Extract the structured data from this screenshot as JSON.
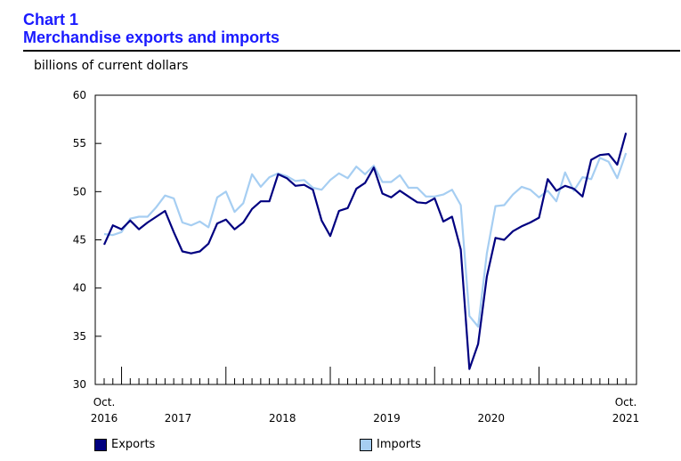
{
  "header": {
    "number": "Chart 1",
    "title": "Merchandise exports and imports"
  },
  "chart_data": {
    "type": "line",
    "title": "Merchandise exports and imports",
    "ylabel": "billions of current dollars",
    "ylim": [
      30,
      60
    ],
    "yticks": [
      30,
      35,
      40,
      45,
      50,
      55,
      60
    ],
    "grid": false,
    "legend_placement": "bottom",
    "x_start": "2016-10",
    "x_end": "2021-10",
    "x_labels": {
      "start_month": "Oct.",
      "start_year": "2016",
      "years": [
        "2017",
        "2018",
        "2019",
        "2020"
      ],
      "end_month": "Oct.",
      "end_year": "2021"
    },
    "x": [
      "2016-10",
      "2016-11",
      "2016-12",
      "2017-01",
      "2017-02",
      "2017-03",
      "2017-04",
      "2017-05",
      "2017-06",
      "2017-07",
      "2017-08",
      "2017-09",
      "2017-10",
      "2017-11",
      "2017-12",
      "2018-01",
      "2018-02",
      "2018-03",
      "2018-04",
      "2018-05",
      "2018-06",
      "2018-07",
      "2018-08",
      "2018-09",
      "2018-10",
      "2018-11",
      "2018-12",
      "2019-01",
      "2019-02",
      "2019-03",
      "2019-04",
      "2019-05",
      "2019-06",
      "2019-07",
      "2019-08",
      "2019-09",
      "2019-10",
      "2019-11",
      "2019-12",
      "2020-01",
      "2020-02",
      "2020-03",
      "2020-04",
      "2020-05",
      "2020-06",
      "2020-07",
      "2020-08",
      "2020-09",
      "2020-10",
      "2020-11",
      "2020-12",
      "2021-01",
      "2021-02",
      "2021-03",
      "2021-04",
      "2021-05",
      "2021-06",
      "2021-07",
      "2021-08",
      "2021-09",
      "2021-10"
    ],
    "series": [
      {
        "name": "Exports",
        "color": "#000080",
        "values": [
          44.5,
          46.5,
          46.1,
          47.0,
          46.1,
          46.8,
          47.4,
          48.0,
          45.8,
          43.8,
          43.6,
          43.8,
          44.6,
          46.7,
          47.1,
          46.1,
          46.8,
          48.2,
          49.0,
          49.0,
          51.8,
          51.4,
          50.6,
          50.7,
          50.2,
          47.0,
          45.4,
          48.0,
          48.3,
          50.3,
          50.9,
          52.5,
          49.8,
          49.4,
          50.1,
          49.5,
          48.9,
          48.8,
          49.3,
          46.9,
          47.4,
          44.0,
          31.6,
          34.2,
          41.2,
          45.2,
          45.0,
          45.9,
          46.4,
          46.8,
          47.3,
          51.3,
          50.1,
          50.6,
          50.3,
          49.5,
          53.3,
          53.8,
          53.9,
          52.8,
          56.1
        ]
      },
      {
        "name": "Imports",
        "color": "#a6cef2",
        "values": [
          45.6,
          45.5,
          45.8,
          47.2,
          47.4,
          47.4,
          48.4,
          49.6,
          49.3,
          46.8,
          46.5,
          46.9,
          46.3,
          49.4,
          50.0,
          47.9,
          48.8,
          51.8,
          50.5,
          51.5,
          51.9,
          51.6,
          51.1,
          51.2,
          50.4,
          50.2,
          51.2,
          51.9,
          51.4,
          52.6,
          51.8,
          52.7,
          51.0,
          51.0,
          51.7,
          50.4,
          50.4,
          49.5,
          49.5,
          49.7,
          50.2,
          48.6,
          37.1,
          36.0,
          43.6,
          48.5,
          48.6,
          49.7,
          50.5,
          50.2,
          49.4,
          50.1,
          49.0,
          52.0,
          50.1,
          51.5,
          51.3,
          53.5,
          53.1,
          51.4,
          54.0
        ]
      }
    ]
  }
}
